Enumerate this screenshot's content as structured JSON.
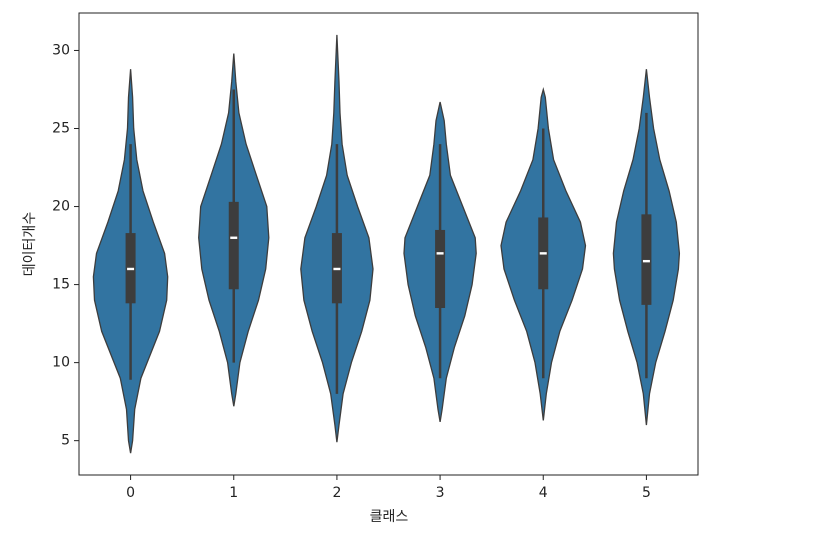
{
  "chart_data": {
    "type": "violin",
    "xlabel": "클래스",
    "ylabel": "데이터개수",
    "categories": [
      "0",
      "1",
      "2",
      "3",
      "4",
      "5"
    ],
    "color": "#3274a1",
    "line_color": "#3d3d3d",
    "ylim": [
      2.8,
      32.4
    ],
    "yticks": [
      5,
      10,
      15,
      20,
      25,
      30
    ],
    "violins": [
      {
        "min": 4.2,
        "max": 28.8,
        "q1": 13.8,
        "median": 16,
        "q3": 18.3,
        "whisker_low": 8.9,
        "whisker_high": 24,
        "density_y": [
          4.2,
          5,
          7,
          9,
          10,
          12,
          14,
          15.5,
          17,
          19,
          21,
          23,
          25,
          27,
          28.8
        ],
        "density_w": [
          0,
          0.02,
          0.04,
          0.1,
          0.16,
          0.28,
          0.35,
          0.36,
          0.33,
          0.22,
          0.12,
          0.06,
          0.03,
          0.02,
          0
        ]
      },
      {
        "min": 7.2,
        "max": 29.8,
        "q1": 14.7,
        "median": 18,
        "q3": 20.3,
        "whisker_low": 10,
        "whisker_high": 27.5,
        "density_y": [
          7.2,
          8,
          10,
          12,
          14,
          16,
          18,
          20,
          22,
          24,
          26,
          28,
          29.8
        ],
        "density_w": [
          0,
          0.02,
          0.06,
          0.14,
          0.24,
          0.31,
          0.34,
          0.32,
          0.22,
          0.12,
          0.05,
          0.02,
          0
        ]
      },
      {
        "min": 4.9,
        "max": 31,
        "q1": 13.8,
        "median": 16,
        "q3": 18.3,
        "whisker_low": 8,
        "whisker_high": 24,
        "density_y": [
          4.9,
          6,
          8,
          10,
          12,
          14,
          16,
          18,
          20,
          22,
          24,
          26,
          28,
          31
        ],
        "density_w": [
          0,
          0.02,
          0.06,
          0.14,
          0.24,
          0.32,
          0.35,
          0.31,
          0.2,
          0.1,
          0.05,
          0.03,
          0.02,
          0
        ]
      },
      {
        "min": 6.2,
        "max": 26.7,
        "q1": 13.5,
        "median": 17,
        "q3": 18.5,
        "whisker_low": 9,
        "whisker_high": 24,
        "density_y": [
          6.2,
          7,
          9,
          11,
          13,
          15,
          17,
          18,
          20,
          22,
          24,
          25.5,
          26.7
        ],
        "density_w": [
          0,
          0.02,
          0.06,
          0.14,
          0.24,
          0.31,
          0.35,
          0.34,
          0.22,
          0.1,
          0.06,
          0.04,
          0
        ]
      },
      {
        "min": 6.3,
        "max": 27.5,
        "q1": 14.7,
        "median": 17,
        "q3": 19.3,
        "whisker_low": 9,
        "whisker_high": 25,
        "density_y": [
          6.3,
          8,
          10,
          12,
          14,
          16,
          17.5,
          19,
          21,
          23,
          25,
          27,
          27.5
        ],
        "density_w": [
          0,
          0.03,
          0.08,
          0.16,
          0.28,
          0.38,
          0.41,
          0.36,
          0.22,
          0.1,
          0.05,
          0.02,
          0
        ]
      },
      {
        "min": 6,
        "max": 28.8,
        "q1": 13.7,
        "median": 16.5,
        "q3": 19.5,
        "whisker_low": 9,
        "whisker_high": 26,
        "density_y": [
          6,
          8,
          10,
          12,
          14,
          16,
          17,
          19,
          21,
          23,
          25,
          27,
          28.8
        ],
        "density_w": [
          0,
          0.03,
          0.09,
          0.18,
          0.26,
          0.31,
          0.32,
          0.29,
          0.22,
          0.13,
          0.07,
          0.03,
          0
        ]
      }
    ]
  }
}
